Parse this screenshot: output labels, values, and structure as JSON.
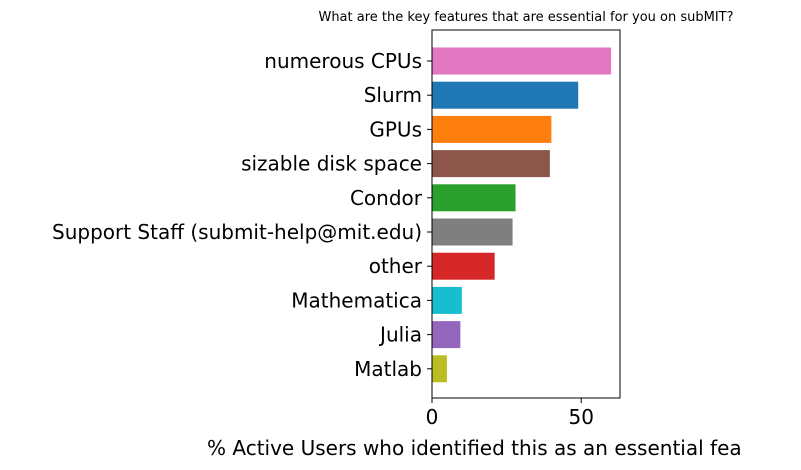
{
  "chart_data": {
    "type": "bar",
    "orientation": "horizontal",
    "title": "What are the key features that are essential for you on subMIT?",
    "xlabel": "% Active Users who identified this as an essential fea",
    "ylabel": "",
    "categories": [
      "numerous CPUs",
      "Slurm",
      "GPUs",
      "sizable disk space",
      "Condor",
      "Support Staff (submit-help@mit.edu)",
      "other",
      "Mathematica",
      "Julia",
      "Matlab"
    ],
    "values": [
      60,
      49,
      40,
      39.5,
      28,
      27,
      21,
      10,
      9.5,
      5
    ],
    "colors": [
      "#e377c2",
      "#1f77b4",
      "#ff7f0e",
      "#8c564b",
      "#2ca02c",
      "#7f7f7f",
      "#d62728",
      "#17becf",
      "#9467bd",
      "#bcbd22"
    ],
    "xlim": [
      0,
      63
    ],
    "xticks": [
      0,
      50
    ],
    "grid": false
  }
}
